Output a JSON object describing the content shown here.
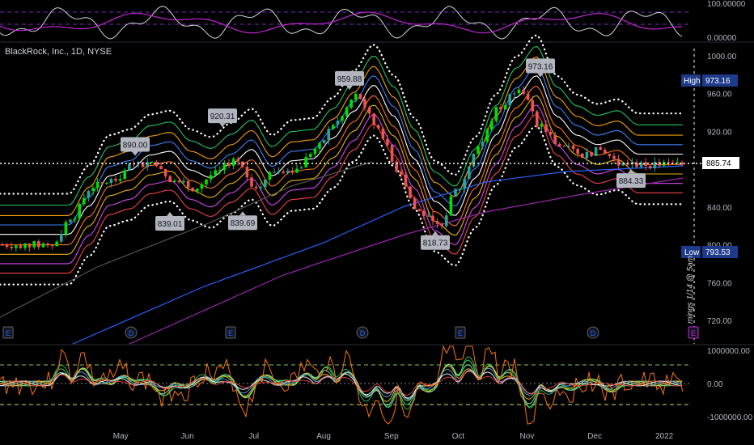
{
  "symbol_title": "BlackRock, Inc., 1D, NYSE",
  "colors": {
    "background": "#000000",
    "up": "#26a69a",
    "up_bright": "#00e000",
    "down": "#ef5350",
    "label_bg": "#b2b5be",
    "axis_text": "#b2b5be",
    "high_badge": "#1e3a8a",
    "price_line": "#ffffff",
    "rsi_line": "#d1d4dc",
    "rsi_signal": "#c026d3",
    "ma_blue": "#2962ff",
    "ma_purple": "#9c27b0"
  },
  "badges": {
    "high_label": "High",
    "high_value": "973.16",
    "low_label": "Low",
    "low_value": "793.53",
    "last_value": "885.74"
  },
  "earnings_note": "mings 1/14 @ 5am",
  "event_markers": [
    "E",
    "D",
    "E",
    "D",
    "E",
    "D",
    "E"
  ],
  "chart_data": [
    {
      "type": "line",
      "title": "",
      "panel": "oscillator-top",
      "y_ticks": [
        "100.00000",
        "0.00000"
      ],
      "ylim": [
        0,
        100
      ]
    },
    {
      "type": "candlestick",
      "title": "BlackRock, Inc., 1D, NYSE",
      "panel": "price",
      "x_ticks": [
        "May",
        "Jun",
        "Jul",
        "Aug",
        "Sep",
        "Oct",
        "Nov",
        "Dec",
        "2022"
      ],
      "y_ticks": [
        "1000.00",
        "960.00",
        "920.00",
        "840.00",
        "800.00",
        "760.00",
        "720.00"
      ],
      "ylim": [
        705,
        1012
      ],
      "annotations": [
        {
          "text": "890.00",
          "kind": "high"
        },
        {
          "text": "839.01",
          "kind": "low"
        },
        {
          "text": "920.31",
          "kind": "high"
        },
        {
          "text": "839.69",
          "kind": "low"
        },
        {
          "text": "959.88",
          "kind": "high"
        },
        {
          "text": "818.73",
          "kind": "low"
        },
        {
          "text": "973.16",
          "kind": "high"
        },
        {
          "text": "884.33",
          "kind": "low"
        }
      ],
      "levels": {
        "high": 973.16,
        "low": 793.53,
        "last": 885.74
      },
      "series": [
        {
          "name": "",
          "key": "close",
          "x_months": [
            4.0,
            4.3,
            4.6,
            4.9,
            5.2,
            5.5,
            5.8,
            6.1,
            6.4,
            6.7,
            7.0,
            7.3,
            7.6,
            7.9,
            8.2,
            8.5,
            8.8,
            9.1,
            9.4,
            9.7,
            10.0,
            10.3,
            10.6,
            10.9,
            11.2,
            11.5,
            11.8,
            12.1,
            12.4
          ],
          "values": [
            800,
            830,
            862,
            868,
            884,
            888,
            868,
            860,
            875,
            890,
            862,
            878,
            880,
            902,
            930,
            958,
            925,
            880,
            835,
            820,
            860,
            905,
            945,
            968,
            925,
            905,
            895,
            900,
            885
          ]
        }
      ]
    },
    {
      "type": "line",
      "title": "",
      "panel": "oscillator-bottom",
      "y_ticks": [
        "1000000.00",
        "0.00",
        "-1000000.00"
      ],
      "ylim": [
        -1000000,
        1000000
      ]
    }
  ]
}
